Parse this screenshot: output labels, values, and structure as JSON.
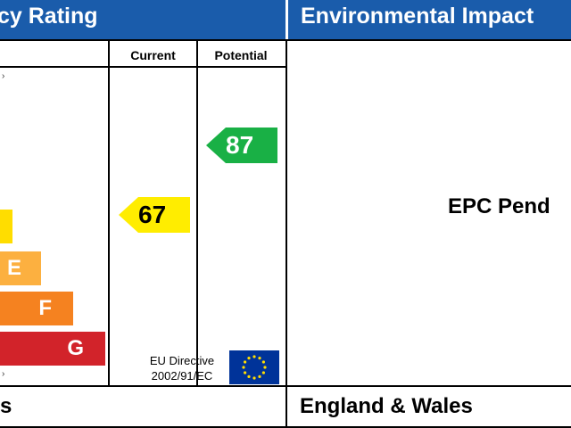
{
  "headers": {
    "left": "cy Rating",
    "right": "Environmental Impact"
  },
  "columns": {
    "current": "Current",
    "potential": "Potential"
  },
  "bands": [
    {
      "letter": "",
      "color": "#ffdd00",
      "top_px_hint": "d-band"
    },
    {
      "letter": "E",
      "color": "#fcb040"
    },
    {
      "letter": "F",
      "color": "#f58220"
    },
    {
      "letter": "G",
      "color": "#d2232a"
    }
  ],
  "ratings": {
    "current": {
      "value": "67",
      "color": "#ffed00"
    },
    "potential": {
      "value": "87",
      "color": "#19b045"
    }
  },
  "footer": {
    "left_fragment": "s",
    "eu_line1": "EU Directive",
    "eu_line2": "2002/91/EC",
    "right": "England & Wales"
  },
  "environmental": {
    "status": "EPC Pend"
  },
  "eu_flag": {
    "color": "#003399",
    "star_color": "#ffdd00"
  }
}
